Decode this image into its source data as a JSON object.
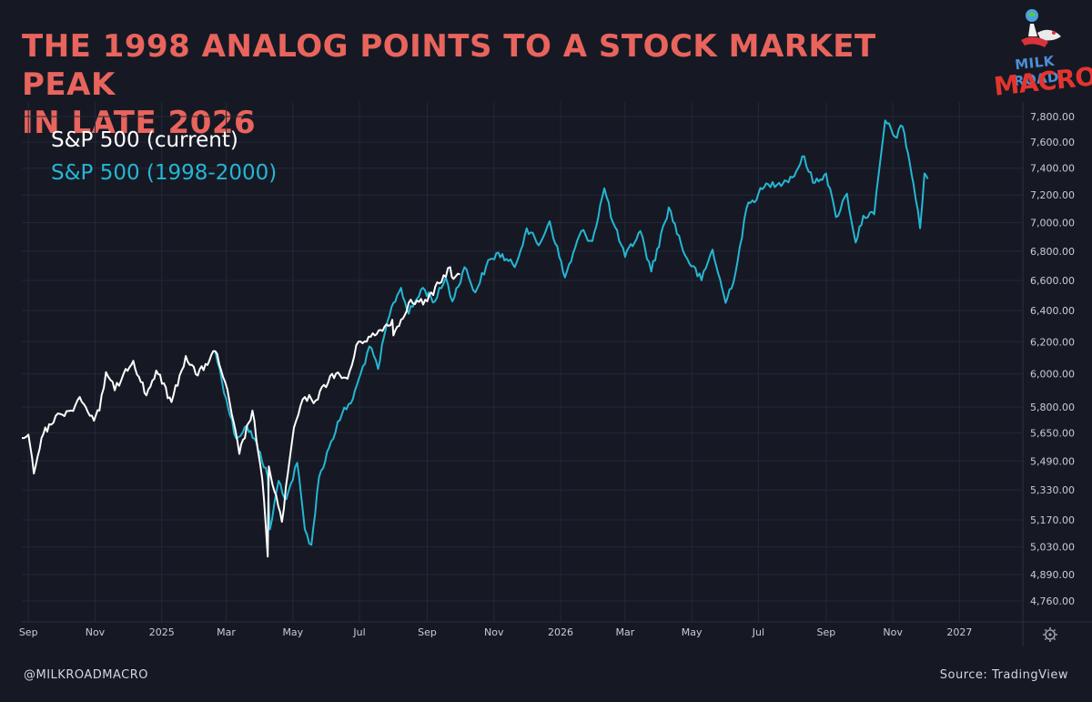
{
  "title_lines": [
    "THE 1998 ANALOG POINTS TO A STOCK MARKET PEAK",
    "IN LATE 2026"
  ],
  "logo": {
    "line1": "MILK ROAD",
    "line2": "MACRO"
  },
  "footer": {
    "handle": "@MILKROADMACRO",
    "source": "Source: TradingView"
  },
  "colors": {
    "background": "#161923",
    "title": "#e8645d",
    "current": "#ffffff",
    "historical": "#25b6d4",
    "grid": "#232838",
    "axis_text": "#c9ccd4"
  },
  "chart_data": {
    "type": "line",
    "title": "THE 1998 ANALOG POINTS TO A STOCK MARKET PEAK IN LATE 2026",
    "xlabel": "",
    "ylabel": "",
    "x_range": [
      "2024-08-26",
      "2027-02-28"
    ],
    "x_tick_labels": [
      {
        "date": "2024-09-01",
        "label": "Sep"
      },
      {
        "date": "2024-11-01",
        "label": "Nov"
      },
      {
        "date": "2025-01-01",
        "label": "2025"
      },
      {
        "date": "2025-03-01",
        "label": "Mar"
      },
      {
        "date": "2025-05-01",
        "label": "May"
      },
      {
        "date": "2025-07-01",
        "label": "Jul"
      },
      {
        "date": "2025-09-01",
        "label": "Sep"
      },
      {
        "date": "2025-11-01",
        "label": "Nov"
      },
      {
        "date": "2026-01-01",
        "label": "2026"
      },
      {
        "date": "2026-03-01",
        "label": "Mar"
      },
      {
        "date": "2026-05-01",
        "label": "May"
      },
      {
        "date": "2026-07-01",
        "label": "Jul"
      },
      {
        "date": "2026-09-01",
        "label": "Sep"
      },
      {
        "date": "2026-11-01",
        "label": "Nov"
      },
      {
        "date": "2027-01-01",
        "label": "2027"
      }
    ],
    "y_scale": "log",
    "y_ticks": [
      4760,
      4890,
      5030,
      5170,
      5330,
      5490,
      5650,
      5800,
      6000,
      6200,
      6400,
      6600,
      6800,
      7000,
      7200,
      7400,
      7600,
      7800
    ],
    "y_tick_labels": [
      "4,760.00",
      "4,890.00",
      "5,030.00",
      "5,170.00",
      "5,330.00",
      "5,490.00",
      "5,650.00",
      "5,800.00",
      "6,000.00",
      "6,200.00",
      "6,400.00",
      "6,600.00",
      "6,800.00",
      "7,000.00",
      "7,200.00",
      "7,400.00",
      "7,600.00",
      "7,800.00"
    ],
    "grid": true,
    "legend": "top-left",
    "series": [
      {
        "name": "S&P 500 (current)",
        "color": "#ffffff",
        "points": [
          [
            "2024-08-26",
            5620
          ],
          [
            "2024-09-01",
            5640
          ],
          [
            "2024-09-06",
            5420
          ],
          [
            "2024-09-13",
            5620
          ],
          [
            "2024-09-20",
            5700
          ],
          [
            "2024-09-30",
            5760
          ],
          [
            "2024-10-10",
            5780
          ],
          [
            "2024-10-18",
            5860
          ],
          [
            "2024-10-31",
            5720
          ],
          [
            "2024-11-05",
            5780
          ],
          [
            "2024-11-11",
            6010
          ],
          [
            "2024-11-19",
            5900
          ],
          [
            "2024-11-29",
            6030
          ],
          [
            "2024-12-06",
            6080
          ],
          [
            "2024-12-18",
            5870
          ],
          [
            "2024-12-27",
            6020
          ],
          [
            "2025-01-10",
            5830
          ],
          [
            "2025-01-23",
            6110
          ],
          [
            "2025-02-03",
            5990
          ],
          [
            "2025-02-19",
            6140
          ],
          [
            "2025-02-28",
            5950
          ],
          [
            "2025-03-06",
            5760
          ],
          [
            "2025-03-13",
            5530
          ],
          [
            "2025-03-25",
            5780
          ],
          [
            "2025-04-03",
            5390
          ],
          [
            "2025-04-08",
            4980
          ],
          [
            "2025-04-09",
            5460
          ],
          [
            "2025-04-21",
            5160
          ],
          [
            "2025-05-02",
            5680
          ],
          [
            "2025-05-12",
            5860
          ],
          [
            "2025-05-22",
            5840
          ],
          [
            "2025-06-06",
            6000
          ],
          [
            "2025-06-20",
            5970
          ],
          [
            "2025-06-30",
            6200
          ],
          [
            "2025-07-15",
            6240
          ],
          [
            "2025-07-31",
            6340
          ],
          [
            "2025-08-01",
            6240
          ],
          [
            "2025-08-15",
            6450
          ],
          [
            "2025-09-01",
            6460
          ],
          [
            "2025-09-12",
            6580
          ],
          [
            "2025-09-22",
            6690
          ],
          [
            "2025-09-25",
            6610
          ],
          [
            "2025-10-01",
            6640
          ]
        ]
      },
      {
        "name": "S&P 500 (1998-2000)",
        "color": "#25b6d4",
        "points": [
          [
            "2025-02-19",
            6140
          ],
          [
            "2025-03-01",
            5850
          ],
          [
            "2025-03-10",
            5620
          ],
          [
            "2025-03-20",
            5690
          ],
          [
            "2025-04-01",
            5540
          ],
          [
            "2025-04-08",
            5400
          ],
          [
            "2025-04-10",
            5120
          ],
          [
            "2025-04-18",
            5380
          ],
          [
            "2025-04-25",
            5280
          ],
          [
            "2025-05-05",
            5480
          ],
          [
            "2025-05-12",
            5120
          ],
          [
            "2025-05-18",
            5040
          ],
          [
            "2025-05-25",
            5400
          ],
          [
            "2025-06-05",
            5600
          ],
          [
            "2025-06-15",
            5760
          ],
          [
            "2025-06-25",
            5850
          ],
          [
            "2025-07-02",
            6000
          ],
          [
            "2025-07-10",
            6170
          ],
          [
            "2025-07-18",
            6030
          ],
          [
            "2025-07-25",
            6280
          ],
          [
            "2025-08-01",
            6450
          ],
          [
            "2025-08-08",
            6550
          ],
          [
            "2025-08-15",
            6380
          ],
          [
            "2025-08-28",
            6550
          ],
          [
            "2025-09-08",
            6460
          ],
          [
            "2025-09-18",
            6620
          ],
          [
            "2025-09-24",
            6460
          ],
          [
            "2025-10-05",
            6690
          ],
          [
            "2025-10-15",
            6520
          ],
          [
            "2025-10-25",
            6700
          ],
          [
            "2025-11-05",
            6790
          ],
          [
            "2025-11-20",
            6690
          ],
          [
            "2025-12-01",
            6960
          ],
          [
            "2025-12-12",
            6840
          ],
          [
            "2025-12-22",
            7010
          ],
          [
            "2026-01-05",
            6620
          ],
          [
            "2026-01-20",
            6940
          ],
          [
            "2026-01-30",
            6870
          ],
          [
            "2026-02-10",
            7250
          ],
          [
            "2026-02-18",
            7000
          ],
          [
            "2026-03-01",
            6760
          ],
          [
            "2026-03-15",
            6940
          ],
          [
            "2026-03-25",
            6660
          ],
          [
            "2026-04-10",
            7110
          ],
          [
            "2026-04-25",
            6770
          ],
          [
            "2026-05-10",
            6600
          ],
          [
            "2026-05-20",
            6810
          ],
          [
            "2026-06-01",
            6450
          ],
          [
            "2026-06-10",
            6650
          ],
          [
            "2026-06-20",
            7100
          ],
          [
            "2026-07-01",
            7210
          ],
          [
            "2026-07-10",
            7280
          ],
          [
            "2026-07-20",
            7290
          ],
          [
            "2026-08-01",
            7330
          ],
          [
            "2026-08-12",
            7490
          ],
          [
            "2026-08-20",
            7290
          ],
          [
            "2026-09-01",
            7360
          ],
          [
            "2026-09-10",
            7040
          ],
          [
            "2026-09-20",
            7210
          ],
          [
            "2026-09-28",
            6860
          ],
          [
            "2026-10-05",
            7050
          ],
          [
            "2026-10-15",
            7060
          ],
          [
            "2026-10-25",
            7770
          ],
          [
            "2026-11-03",
            7640
          ],
          [
            "2026-11-10",
            7720
          ],
          [
            "2026-11-15",
            7510
          ],
          [
            "2026-11-20",
            7280
          ],
          [
            "2026-11-26",
            6960
          ],
          [
            "2026-11-30",
            7360
          ],
          [
            "2026-12-03",
            7320
          ]
        ]
      }
    ]
  }
}
